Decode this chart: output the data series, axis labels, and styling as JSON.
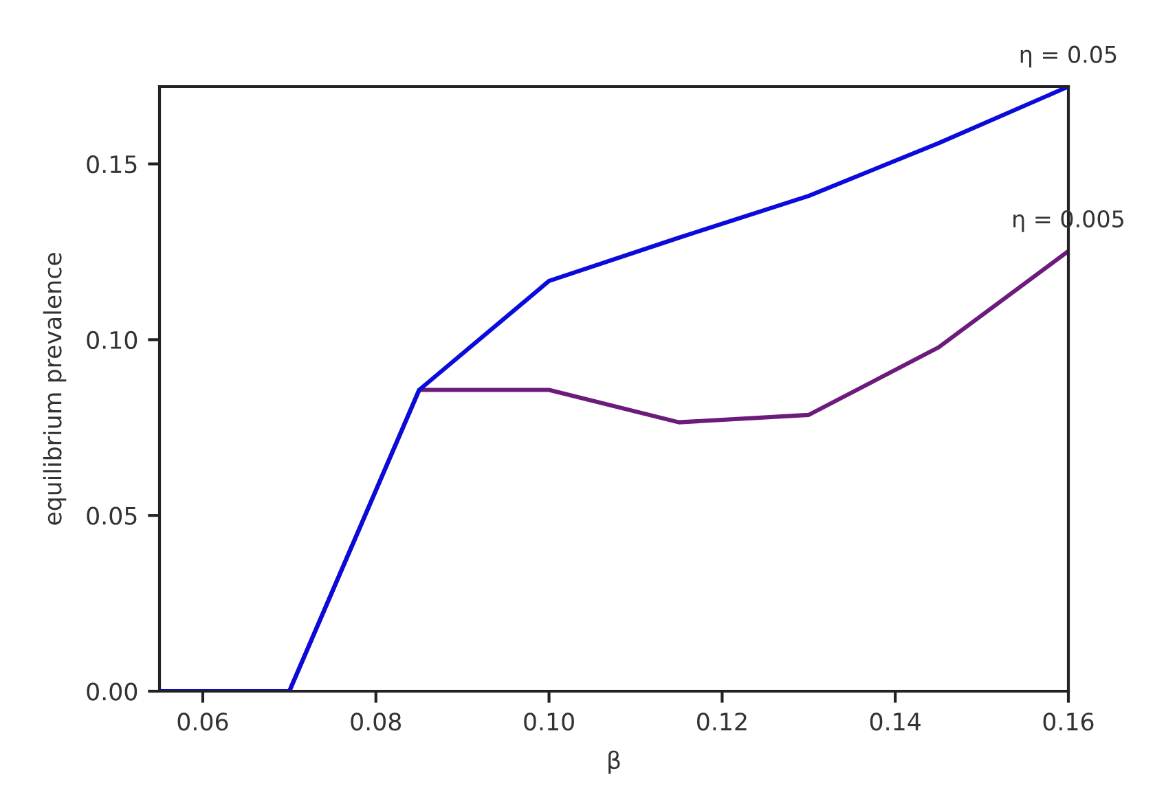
{
  "chart_data": {
    "type": "line",
    "xlabel": "β",
    "ylabel": "equilibrium prevalence",
    "x": [
      0.055,
      0.07,
      0.085,
      0.1,
      0.115,
      0.13,
      0.145,
      0.16
    ],
    "series": [
      {
        "name": "η = 0.05",
        "color": "#0a0adc",
        "values": [
          0,
          0,
          0.0857,
          0.1167,
          0.129,
          0.1409,
          0.1559,
          0.172
        ]
      },
      {
        "name": "η = 0.005",
        "color": "#6c1a7c",
        "values": [
          0,
          0,
          0.0857,
          0.0857,
          0.0765,
          0.0786,
          0.0978,
          0.1252
        ]
      }
    ],
    "xlim": [
      0.055,
      0.16
    ],
    "xticks": [
      0.06,
      0.08,
      {
        "value": 0.1,
        "label": "0.10"
      },
      0.12,
      0.14,
      0.16
    ],
    "ylim": [
      0,
      0.172
    ],
    "yticks": [
      {
        "value": 0,
        "label": "0.00"
      },
      0.05,
      {
        "value": 0.1,
        "label": "0.10"
      },
      0.15
    ],
    "grid": false,
    "legend": false,
    "line_style": "solid"
  }
}
